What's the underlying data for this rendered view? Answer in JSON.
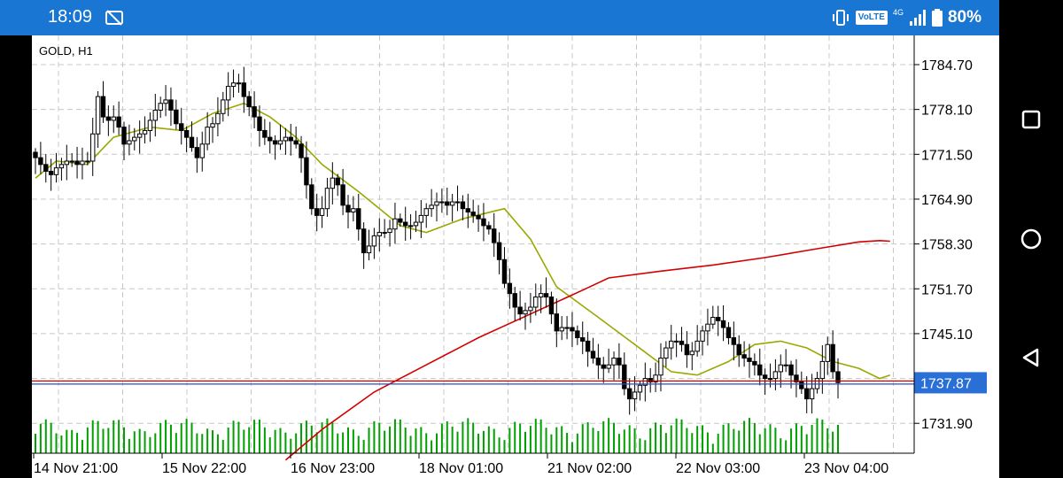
{
  "status_bar": {
    "time": "18:09",
    "network": "4G",
    "volte": "VoLTE",
    "battery": "80%",
    "icons": [
      "dnd-off-icon",
      "vibrate-icon",
      "volte-icon",
      "signal-icon",
      "battery-icon"
    ]
  },
  "chart": {
    "symbol_label": "GOLD, H1",
    "current_price": "1737.87",
    "price_axis_labels": [
      "1784.70",
      "1778.10",
      "1771.50",
      "1764.90",
      "1758.30",
      "1751.70",
      "1745.10",
      "1731.90"
    ],
    "time_axis_labels": [
      "14 Nov 21:00",
      "15 Nov 22:00",
      "16 Nov 23:00",
      "18 Nov 01:00",
      "21 Nov 02:00",
      "22 Nov 03:00",
      "23 Nov 04:00"
    ],
    "colors": {
      "candle": "#000000",
      "ma_fast": "#9aa800",
      "ma_slow": "#d40000",
      "volume": "#00a000",
      "bid_line": "#d40000",
      "ask_line": "#2050c0",
      "price_tag": "#2a6fd6",
      "grid": "#c8c8c8"
    }
  },
  "nav_bar": {
    "icons": [
      "recents-square-icon",
      "home-circle-icon",
      "back-triangle-icon"
    ]
  },
  "chart_data": {
    "type": "candlestick",
    "symbol": "GOLD",
    "timeframe": "H1",
    "ylim": [
      1727.5,
      1789.0
    ],
    "y_ticks": [
      1784.7,
      1778.1,
      1771.5,
      1764.9,
      1758.3,
      1751.7,
      1745.1,
      1731.9
    ],
    "x_tick_labels": [
      "14 Nov 21:00",
      "15 Nov 22:00",
      "16 Nov 23:00",
      "18 Nov 01:00",
      "21 Nov 02:00",
      "22 Nov 03:00",
      "23 Nov 04:00"
    ],
    "last_price": 1737.87,
    "close_path": [
      1771.0,
      1770.0,
      1769.0,
      1768.5,
      1769.5,
      1770.0,
      1770.5,
      1770.5,
      1770.0,
      1770.5,
      1770.5,
      1774.5,
      1780.0,
      1777.0,
      1776.5,
      1777.0,
      1775.5,
      1773.0,
      1773.5,
      1774.0,
      1774.5,
      1775.0,
      1776.5,
      1778.0,
      1779.0,
      1779.5,
      1778.0,
      1776.0,
      1775.0,
      1774.0,
      1772.5,
      1771.0,
      1773.0,
      1775.5,
      1776.0,
      1777.5,
      1779.5,
      1781.5,
      1782.0,
      1782.0,
      1780.0,
      1778.5,
      1777.0,
      1775.0,
      1774.0,
      1773.5,
      1773.0,
      1773.5,
      1774.0,
      1773.5,
      1773.0,
      1771.0,
      1767.0,
      1763.5,
      1762.5,
      1763.5,
      1766.5,
      1768.0,
      1767.0,
      1764.0,
      1763.0,
      1763.5,
      1760.5,
      1757.0,
      1758.0,
      1759.5,
      1760.0,
      1760.0,
      1760.5,
      1762.0,
      1761.5,
      1761.0,
      1761.0,
      1761.5,
      1762.5,
      1763.5,
      1764.0,
      1764.5,
      1764.5,
      1764.0,
      1764.5,
      1764.5,
      1763.5,
      1763.0,
      1762.5,
      1762.0,
      1761.0,
      1760.5,
      1758.5,
      1756.0,
      1752.5,
      1751.0,
      1749.0,
      1748.0,
      1748.5,
      1749.0,
      1750.5,
      1751.0,
      1750.5,
      1748.0,
      1745.5,
      1746.0,
      1746.0,
      1745.5,
      1744.5,
      1744.0,
      1742.5,
      1741.5,
      1740.5,
      1740.0,
      1740.5,
      1741.5,
      1740.5,
      1737.0,
      1735.5,
      1736.5,
      1737.5,
      1738.5,
      1738.0,
      1739.0,
      1741.5,
      1743.0,
      1744.0,
      1744.0,
      1743.5,
      1742.0,
      1742.5,
      1744.0,
      1745.5,
      1746.5,
      1747.5,
      1747.0,
      1746.0,
      1744.5,
      1743.5,
      1742.0,
      1741.5,
      1741.0,
      1740.5,
      1739.0,
      1738.5,
      1738.5,
      1739.5,
      1740.5,
      1740.5,
      1739.0,
      1738.0,
      1737.0,
      1735.5,
      1737.0,
      1738.5,
      1741.0,
      1743.5,
      1739.5,
      1737.9
    ],
    "moving_averages": [
      {
        "color": "#9aa800",
        "points": [
          [
            0,
            1768.0
          ],
          [
            4,
            1770.5
          ],
          [
            10,
            1770.0
          ],
          [
            15,
            1774.0
          ],
          [
            22,
            1775.5
          ],
          [
            28,
            1775.0
          ],
          [
            34,
            1777.5
          ],
          [
            40,
            1779.0
          ],
          [
            45,
            1777.0
          ],
          [
            50,
            1774.0
          ],
          [
            55,
            1770.0
          ],
          [
            62,
            1766.0
          ],
          [
            70,
            1761.0
          ],
          [
            75,
            1760.0
          ],
          [
            82,
            1762.0
          ],
          [
            90,
            1763.5
          ],
          [
            95,
            1759.0
          ],
          [
            100,
            1752.0
          ],
          [
            108,
            1747.5
          ],
          [
            115,
            1743.5
          ],
          [
            122,
            1739.5
          ],
          [
            127,
            1739.0
          ],
          [
            133,
            1741.0
          ],
          [
            138,
            1743.5
          ],
          [
            143,
            1744.0
          ],
          [
            148,
            1743.0
          ],
          [
            153,
            1741.0
          ],
          [
            158,
            1740.0
          ],
          [
            162,
            1738.5
          ],
          [
            164,
            1739.0
          ]
        ]
      },
      {
        "color": "#d40000",
        "points": [
          [
            48,
            1726.5
          ],
          [
            55,
            1731.0
          ],
          [
            65,
            1736.5
          ],
          [
            75,
            1740.5
          ],
          [
            85,
            1744.5
          ],
          [
            95,
            1748.0
          ],
          [
            105,
            1751.5
          ],
          [
            110,
            1753.3
          ],
          [
            120,
            1754.3
          ],
          [
            130,
            1755.2
          ],
          [
            140,
            1756.3
          ],
          [
            150,
            1757.6
          ],
          [
            158,
            1758.6
          ],
          [
            162,
            1758.8
          ],
          [
            164,
            1758.7
          ]
        ]
      }
    ]
  }
}
